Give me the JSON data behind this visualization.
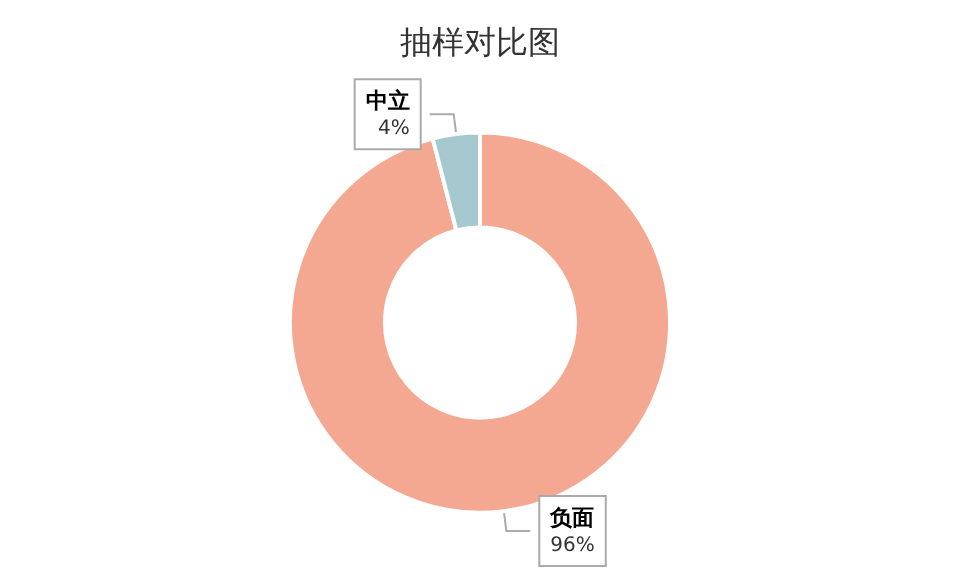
{
  "chart_data": {
    "type": "donut",
    "title": "抽样对比图",
    "categories": [
      "负面",
      "中立"
    ],
    "values": [
      96,
      4
    ],
    "value_labels": [
      "96%",
      "4%"
    ],
    "colors": [
      "#f4a891",
      "#a6c8cf"
    ]
  }
}
